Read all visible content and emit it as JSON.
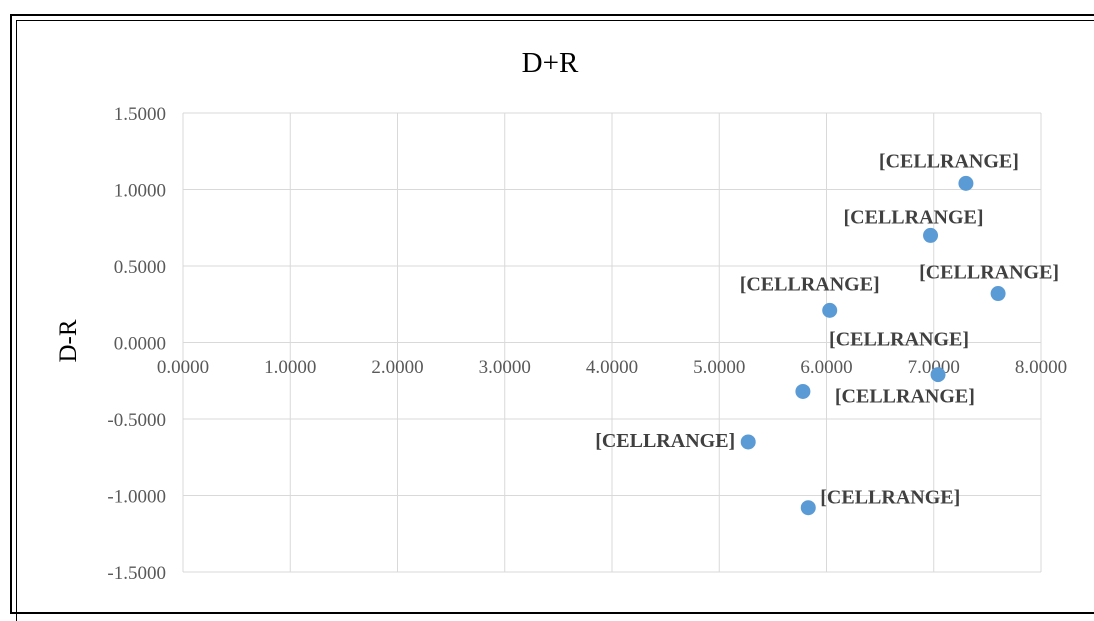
{
  "chart_data": {
    "type": "scatter",
    "title": "D+R",
    "xlabel": "",
    "ylabel": "D-R",
    "xlim": [
      0,
      8
    ],
    "ylim": [
      -1.5,
      1.5
    ],
    "x_ticks": [
      "0.0000",
      "1.0000",
      "2.0000",
      "3.0000",
      "4.0000",
      "5.0000",
      "6.0000",
      "7.0000",
      "8.0000"
    ],
    "y_ticks": [
      "1.5000",
      "1.0000",
      "0.5000",
      "0.0000",
      "-0.5000",
      "-1.0000",
      "-1.5000"
    ],
    "grid": true,
    "marker_color": "#5b9bd5",
    "points": [
      {
        "x": 7.3,
        "y": 1.04,
        "label": "[CELLRANGE]"
      },
      {
        "x": 6.97,
        "y": 0.7,
        "label": "[CELLRANGE]"
      },
      {
        "x": 7.6,
        "y": 0.32,
        "label": "[CELLRANGE]"
      },
      {
        "x": 6.03,
        "y": 0.21,
        "label": "[CELLRANGE]"
      },
      {
        "x": 7.04,
        "y": -0.21,
        "label": "[CELLRANGE]"
      },
      {
        "x": 5.78,
        "y": -0.32,
        "label": "[CELLRANGE]"
      },
      {
        "x": 5.27,
        "y": -0.65,
        "label": "[CELLRANGE]"
      },
      {
        "x": 5.83,
        "y": -1.08,
        "label": "[CELLRANGE]"
      }
    ]
  }
}
